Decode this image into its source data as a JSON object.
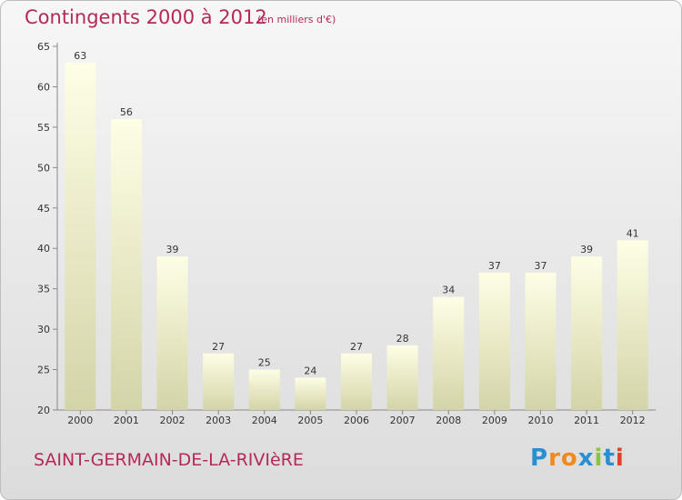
{
  "header": {
    "title": "Contingents 2000 à 2012",
    "subtitle": "(en milliers d'€)"
  },
  "footer": {
    "town": "SAINT-GERMAIN-DE-LA-RIVIèRE",
    "logo_letters": [
      "P",
      "r",
      "o",
      "x",
      "i",
      "t",
      "i"
    ],
    "logo_colors": [
      "#2a8fd1",
      "#f08a1c",
      "#f08a1c",
      "#2a8fd1",
      "#8cc43f",
      "#2a8fd1",
      "#e0402a"
    ]
  },
  "colors": {
    "title": "#b5295a",
    "bar_top": "#fefee6",
    "bar_bottom": "#d4d4a8"
  },
  "chart_data": {
    "type": "bar",
    "title": "Contingents 2000 à 2012",
    "xlabel": "",
    "ylabel": "",
    "categories": [
      "2000",
      "2001",
      "2002",
      "2003",
      "2004",
      "2005",
      "2006",
      "2007",
      "2008",
      "2009",
      "2010",
      "2011",
      "2012"
    ],
    "values": [
      63,
      56,
      39,
      27,
      25,
      24,
      27,
      28,
      34,
      37,
      37,
      39,
      41
    ],
    "ylim": [
      20,
      65
    ],
    "yticks": [
      20,
      25,
      30,
      35,
      40,
      45,
      50,
      55,
      60,
      65
    ],
    "grid": false,
    "data_labels": true
  }
}
